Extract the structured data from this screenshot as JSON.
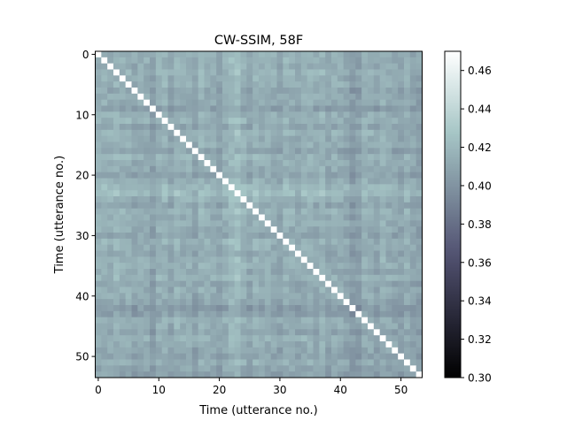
{
  "chart_data": {
    "type": "heatmap",
    "title": "CW-SSIM, 58F",
    "xlabel": "Time (utterance no.)",
    "ylabel": "Time (utterance no.)",
    "n": 54,
    "x_ticks": [
      0,
      10,
      20,
      30,
      40,
      50
    ],
    "y_ticks": [
      0,
      10,
      20,
      30,
      40,
      50
    ],
    "diagonal_value": 0.47,
    "base_value": 0.412,
    "row_col_offsets": [
      0.002,
      0.003,
      0.001,
      0.004,
      0.002,
      0.003,
      -0.002,
      0.001,
      0.0,
      -0.006,
      0.002,
      0.003,
      -0.003,
      0.004,
      0.001,
      0.002,
      -0.004,
      0.003,
      0.001,
      0.0,
      -0.003,
      0.002,
      0.008,
      0.009,
      0.003,
      -0.002,
      0.004,
      0.001,
      0.002,
      0.0,
      -0.003,
      0.003,
      0.001,
      -0.002,
      0.002,
      0.003,
      0.0,
      0.004,
      -0.002,
      0.001,
      0.0,
      -0.003,
      -0.009,
      -0.007,
      0.002,
      0.001,
      -0.003,
      0.003,
      0.0,
      -0.002,
      -0.004,
      0.001,
      -0.003,
      -0.005
    ],
    "colorbar": {
      "vmin": 0.3,
      "vmax": 0.47,
      "ticks": [
        "0.30",
        "0.32",
        "0.34",
        "0.36",
        "0.38",
        "0.40",
        "0.42",
        "0.44",
        "0.46"
      ],
      "colormap": "bone"
    },
    "grid": false
  }
}
